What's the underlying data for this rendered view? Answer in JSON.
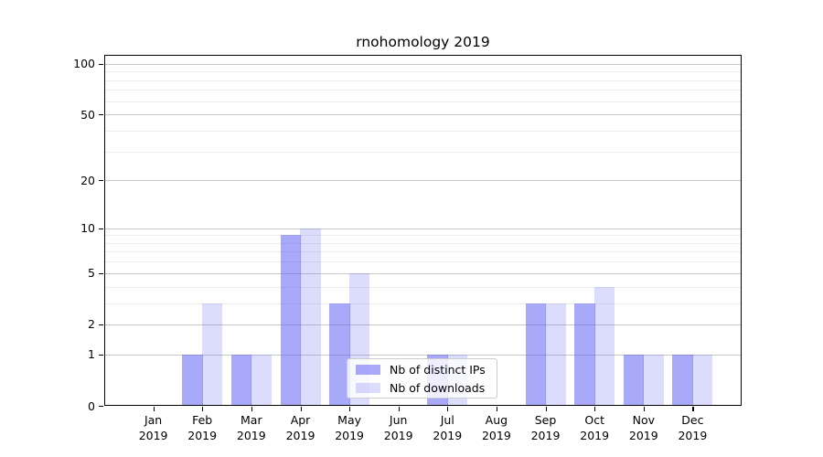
{
  "chart_data": {
    "type": "bar",
    "title": "rnohomology 2019",
    "categories": [
      "Jan",
      "Feb",
      "Mar",
      "Apr",
      "May",
      "Jun",
      "Jul",
      "Aug",
      "Sep",
      "Oct",
      "Nov",
      "Dec"
    ],
    "year_label": "2019",
    "series": [
      {
        "name": "Nb of distinct IPs",
        "color": "rgba(90,90,245,0.52)",
        "color_hex_on_white": "#aaaaf9",
        "values": [
          0,
          1,
          1,
          9,
          3,
          0,
          1,
          0,
          3,
          3,
          1,
          1
        ]
      },
      {
        "name": "Nb of downloads",
        "color": "rgba(90,90,245,0.21)",
        "color_hex_on_white": "#dcdcfc",
        "values": [
          0,
          3,
          1,
          10,
          5,
          0,
          1,
          0,
          3,
          4,
          1,
          1
        ]
      }
    ],
    "yticks": [
      0,
      1,
      2,
      5,
      10,
      20,
      50,
      100
    ],
    "minor_yticks": [
      3,
      4,
      6,
      7,
      8,
      9,
      30,
      40,
      60,
      70,
      80,
      90
    ],
    "scale": "log1p",
    "ylim": [
      0,
      113
    ],
    "xlabel": "",
    "ylabel": "",
    "grid": true,
    "grid_major_color": "#c8c8c8",
    "grid_minor_color": "#ececec",
    "legend_position": "lower center",
    "axis_color": "#000000",
    "background_color": "#ffffff"
  }
}
